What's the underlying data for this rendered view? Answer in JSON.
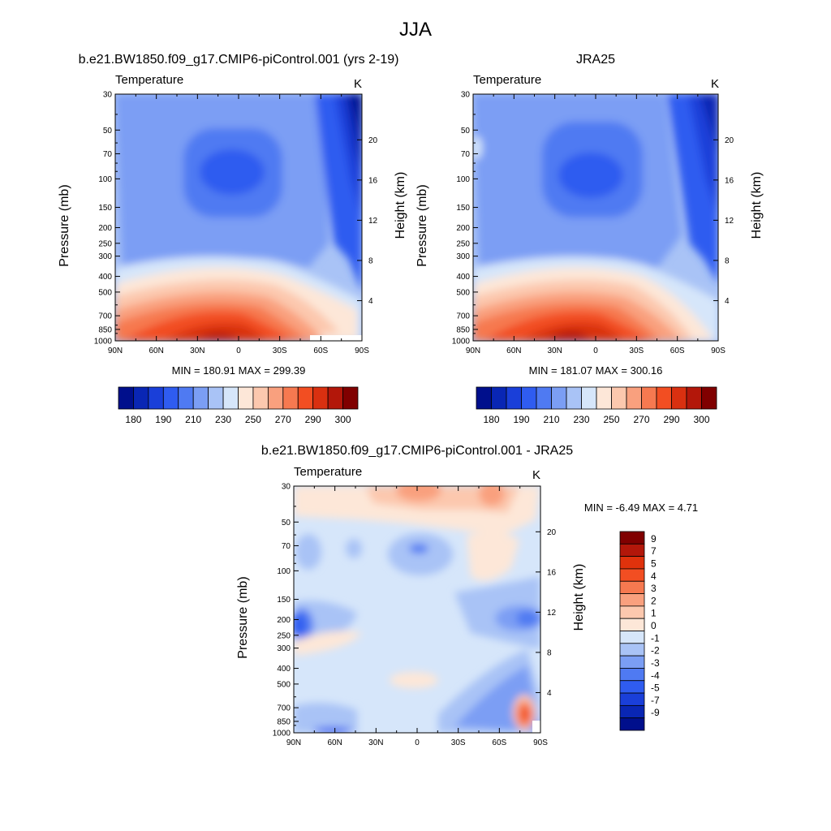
{
  "page": {
    "title": "JJA"
  },
  "panels": [
    {
      "id": "model",
      "title": "b.e21.BW1850.f09_g17.CMIP6-piControl.001 (yrs 2-19)",
      "left_label": "Temperature",
      "units": "K",
      "stats": "MIN = 180.91  MAX = 299.39"
    },
    {
      "id": "obs",
      "title": "JRA25",
      "left_label": "Temperature",
      "units": "K",
      "stats": "MIN = 181.07  MAX = 300.16"
    },
    {
      "id": "diff",
      "title": "b.e21.BW1850.f09_g17.CMIP6-piControl.001 - JRA25",
      "left_label": "Temperature",
      "units": "K",
      "stats": "MIN =  -6.49  MAX =   4.71"
    }
  ],
  "chart_data": [
    {
      "type": "heatmap",
      "title": "b.e21.BW1850.f09_g17.CMIP6-piControl.001 (yrs 2-19)",
      "variable": "Temperature",
      "units": "K",
      "x": [
        90,
        60,
        30,
        0,
        -30,
        -60,
        -90
      ],
      "x_ticklabels": [
        "90N",
        "60N",
        "30N",
        "0",
        "30S",
        "60S",
        "90S"
      ],
      "ylabel": "Pressure (mb)",
      "y_ticks": [
        30,
        50,
        70,
        100,
        150,
        200,
        250,
        300,
        400,
        500,
        700,
        850,
        1000
      ],
      "y_ticklabels": [
        "30",
        "50",
        "70",
        "100",
        "150",
        "200",
        "250",
        "300",
        "400",
        "500",
        "700",
        "850",
        "1000"
      ],
      "y2label": "Height (km)",
      "y2_ticks": [
        4,
        8,
        12,
        16,
        20
      ],
      "y2_ticklabels": [
        "4",
        "8",
        "12",
        "16",
        "20"
      ],
      "ylim": [
        1000,
        30
      ],
      "min": 180.91,
      "max": 299.39,
      "colorbar_labels": [
        "180",
        "190",
        "210",
        "230",
        "250",
        "270",
        "290",
        "300"
      ]
    },
    {
      "type": "heatmap",
      "title": "JRA25",
      "variable": "Temperature",
      "units": "K",
      "x": [
        90,
        60,
        30,
        0,
        -30,
        -60,
        -90
      ],
      "x_ticklabels": [
        "90N",
        "60N",
        "30N",
        "0",
        "30S",
        "60S",
        "90S"
      ],
      "ylabel": "Pressure (mb)",
      "y_ticks": [
        30,
        50,
        70,
        100,
        150,
        200,
        250,
        300,
        400,
        500,
        700,
        850,
        1000
      ],
      "y_ticklabels": [
        "30",
        "50",
        "70",
        "100",
        "150",
        "200",
        "250",
        "300",
        "400",
        "500",
        "700",
        "850",
        "1000"
      ],
      "y2label": "Height (km)",
      "y2_ticks": [
        4,
        8,
        12,
        16,
        20
      ],
      "y2_ticklabels": [
        "4",
        "8",
        "12",
        "16",
        "20"
      ],
      "ylim": [
        1000,
        30
      ],
      "min": 181.07,
      "max": 300.16,
      "colorbar_labels": [
        "180",
        "190",
        "210",
        "230",
        "250",
        "270",
        "290",
        "300"
      ]
    },
    {
      "type": "heatmap",
      "title": "b.e21.BW1850.f09_g17.CMIP6-piControl.001 - JRA25",
      "variable": "Temperature",
      "units": "K",
      "x": [
        90,
        60,
        30,
        0,
        -30,
        -60,
        -90
      ],
      "x_ticklabels": [
        "90N",
        "60N",
        "30N",
        "0",
        "30S",
        "60S",
        "90S"
      ],
      "ylabel": "Pressure (mb)",
      "y_ticks": [
        30,
        50,
        70,
        100,
        150,
        200,
        250,
        300,
        400,
        500,
        700,
        850,
        1000
      ],
      "y_ticklabels": [
        "30",
        "50",
        "70",
        "100",
        "150",
        "200",
        "250",
        "300",
        "400",
        "500",
        "700",
        "850",
        "1000"
      ],
      "y2label": "Height (km)",
      "y2_ticks": [
        4,
        8,
        12,
        16,
        20
      ],
      "y2_ticklabels": [
        "4",
        "8",
        "12",
        "16",
        "20"
      ],
      "ylim": [
        1000,
        30
      ],
      "min": -6.49,
      "max": 4.71,
      "colorbar_labels": [
        "9",
        "7",
        "5",
        "4",
        "3",
        "2",
        "1",
        "0",
        "-1",
        "-2",
        "-3",
        "-4",
        "-5",
        "-7",
        "-9"
      ]
    }
  ],
  "colors": {
    "temp_scale": [
      "#000f8c",
      "#0926b4",
      "#1a3fd9",
      "#2f5cf0",
      "#4f7af2",
      "#7b9ef4",
      "#a9c3f6",
      "#d6e6fa",
      "#fde7d8",
      "#fcc8ae",
      "#f9a07e",
      "#f67950",
      "#f24e22",
      "#d93010",
      "#b3170a",
      "#800000"
    ],
    "diff_scale": [
      "#800000",
      "#b3170a",
      "#e0320c",
      "#f24e22",
      "#f67950",
      "#f9a07e",
      "#fcc8ae",
      "#fde7d8",
      "#d6e6fa",
      "#a9c3f6",
      "#7b9ef4",
      "#4f7af2",
      "#2f5cf0",
      "#1a3fd9",
      "#0926b4",
      "#000f8c"
    ]
  }
}
